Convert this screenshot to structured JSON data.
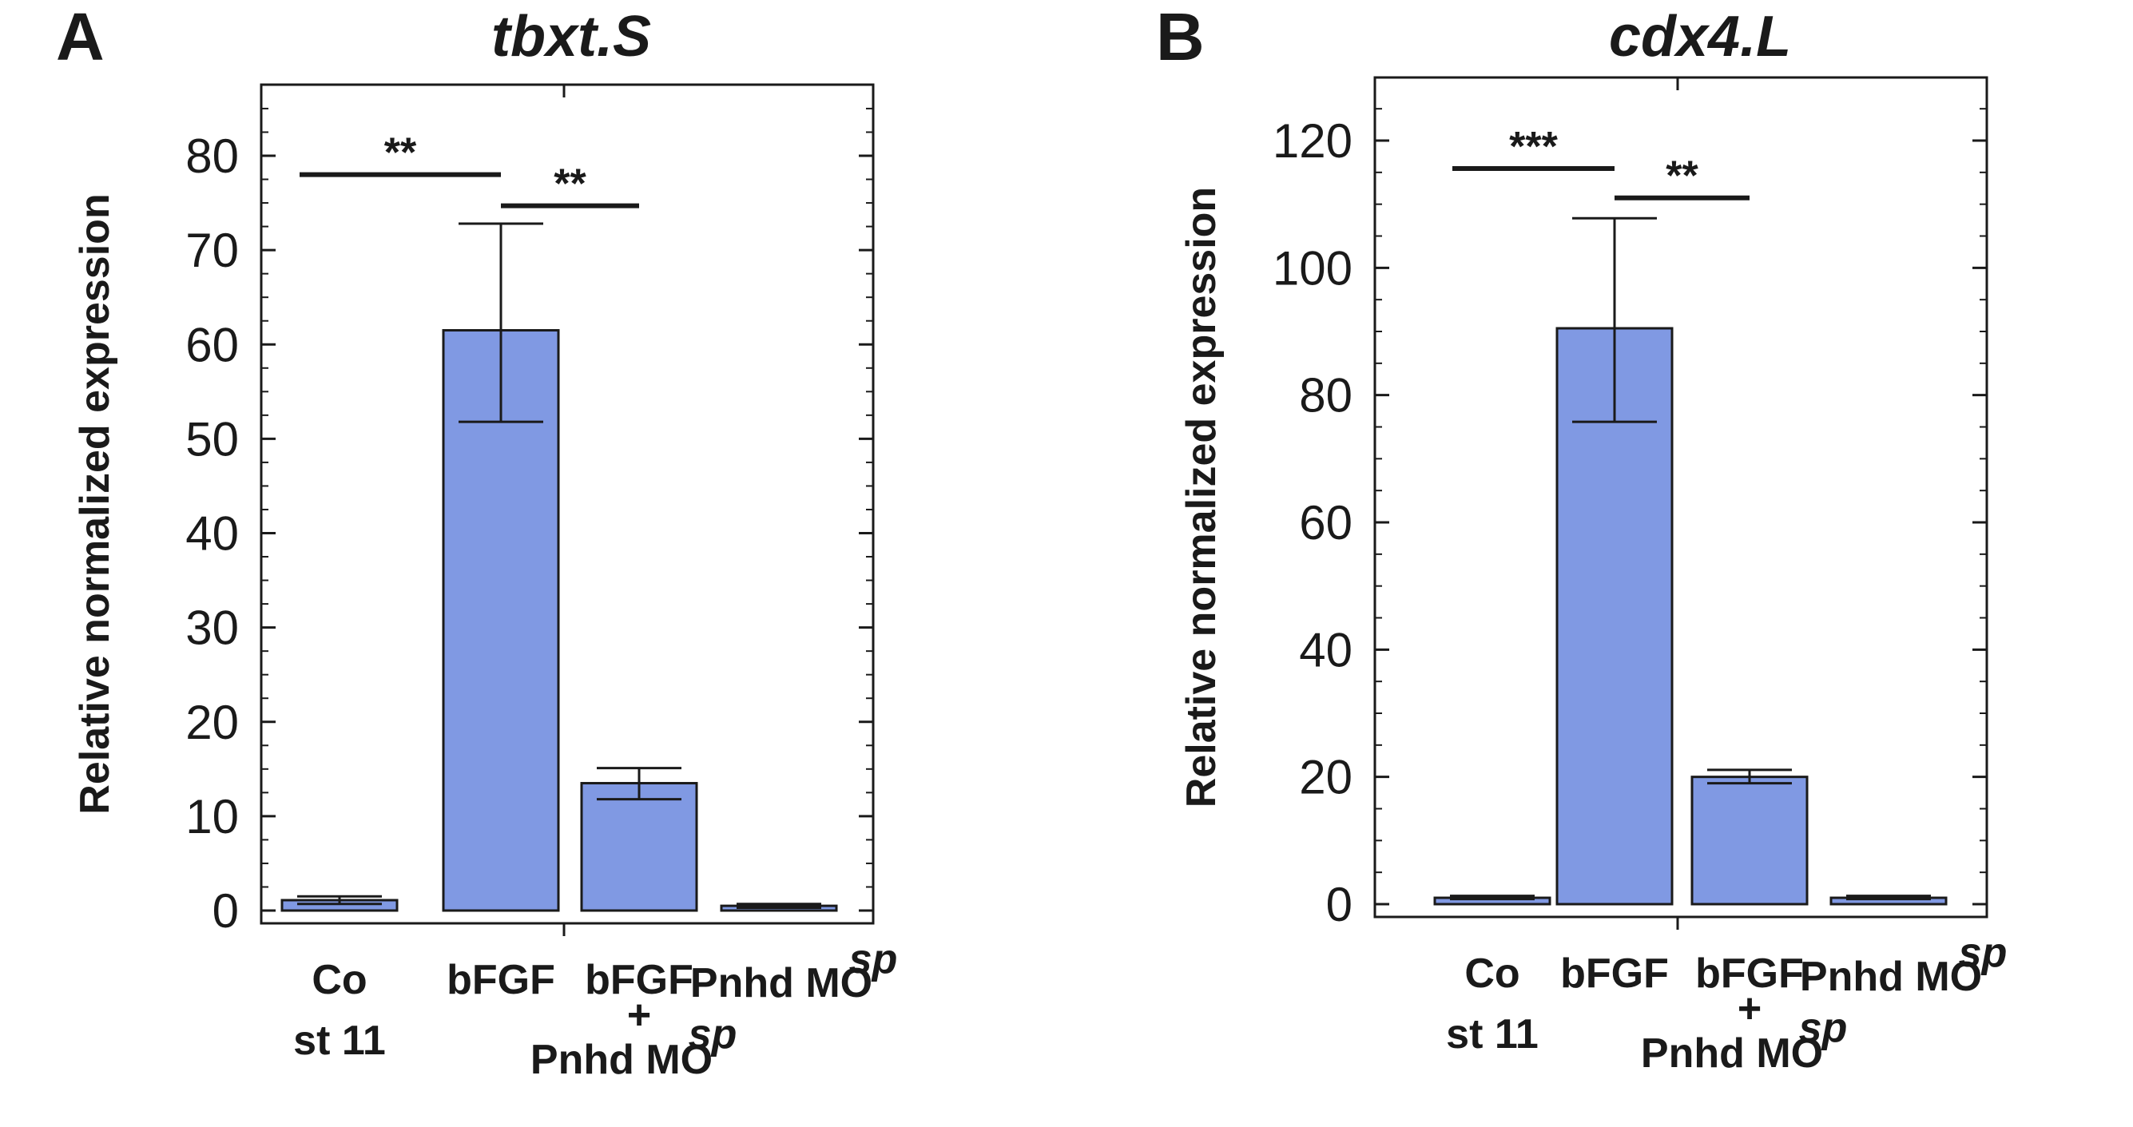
{
  "chart_data": [
    {
      "panel": "A",
      "type": "bar",
      "title": "tbxt.S",
      "xlabel": "",
      "ylabel": "Relative normalized expression",
      "ylim": [
        0,
        88
      ],
      "yticks": [
        0,
        10,
        20,
        30,
        40,
        50,
        60,
        70,
        80
      ],
      "bar_color": "#8099e3",
      "categories": [
        {
          "lines": [
            "Co",
            "st 11"
          ]
        },
        {
          "lines": [
            "bFGF"
          ]
        },
        {
          "lines": [
            "bFGF",
            "+",
            "Pnhd MO"
          ],
          "sup": "sp"
        },
        {
          "lines": [
            "Pnhd MO"
          ],
          "sup": "sp"
        }
      ],
      "values": [
        1.1,
        61.5,
        13.5,
        0.5
      ],
      "error_low": [
        0.7,
        51.8,
        11.8,
        0.3
      ],
      "error_high": [
        1.5,
        72.8,
        15.1,
        0.7
      ],
      "significance": [
        {
          "from": 0,
          "to": 1,
          "y": 78,
          "label": "**"
        },
        {
          "from": 1,
          "to": 2,
          "y": 74.7,
          "label": "**"
        }
      ]
    },
    {
      "panel": "B",
      "type": "bar",
      "title": "cdx4.L",
      "xlabel": "",
      "ylabel": "Relative normalized expression",
      "ylim": [
        0,
        130
      ],
      "yticks": [
        0,
        20,
        40,
        60,
        80,
        100,
        120
      ],
      "bar_color": "#8099e3",
      "categories": [
        {
          "lines": [
            "Co",
            "st 11"
          ]
        },
        {
          "lines": [
            "bFGF"
          ]
        },
        {
          "lines": [
            "bFGF",
            "+",
            "Pnhd MO"
          ],
          "sup": "sp"
        },
        {
          "lines": [
            "Pnhd MO"
          ],
          "sup": "sp"
        }
      ],
      "values": [
        1.0,
        90.5,
        20.0,
        1.0
      ],
      "error_low": [
        0.8,
        75.8,
        19.0,
        0.8
      ],
      "error_high": [
        1.3,
        107.8,
        21.1,
        1.3
      ],
      "significance": [
        {
          "from": 0,
          "to": 1,
          "y": 115.6,
          "label": "***"
        },
        {
          "from": 1,
          "to": 2,
          "y": 111.0,
          "label": "**"
        }
      ]
    }
  ]
}
